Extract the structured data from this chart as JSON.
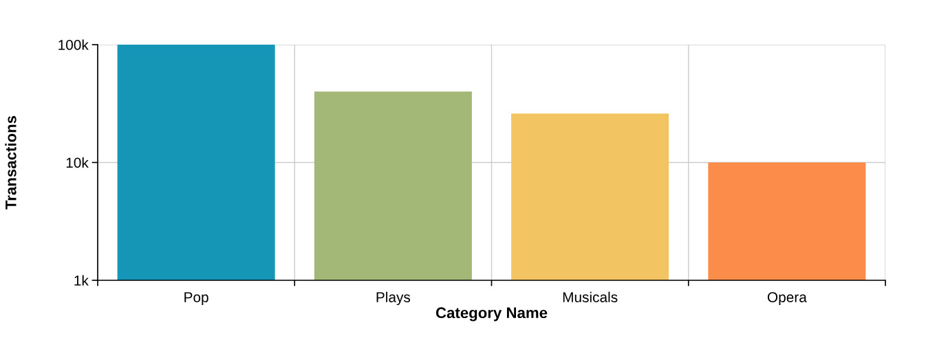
{
  "chart_data": {
    "type": "bar",
    "xlabel": "Category Name",
    "ylabel": "Transactions",
    "categories": [
      "Pop",
      "Plays",
      "Musicals",
      "Opera"
    ],
    "values": [
      100000,
      40000,
      26000,
      10000
    ],
    "colors": [
      "#1696b6",
      "#a3b776",
      "#f2c462",
      "#fc8c4a"
    ],
    "log": true,
    "ylim": [
      1000,
      100000
    ],
    "yticks": [
      {
        "value": 1000,
        "label": "1k"
      },
      {
        "value": 10000,
        "label": "10k"
      },
      {
        "value": 100000,
        "label": "100k"
      }
    ],
    "grid": true
  }
}
